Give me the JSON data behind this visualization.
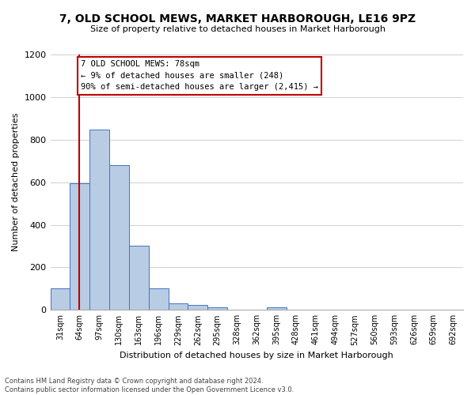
{
  "title": "7, OLD SCHOOL MEWS, MARKET HARBOROUGH, LE16 9PZ",
  "subtitle": "Size of property relative to detached houses in Market Harborough",
  "xlabel": "Distribution of detached houses by size in Market Harborough",
  "ylabel": "Number of detached properties",
  "footer1": "Contains HM Land Registry data © Crown copyright and database right 2024.",
  "footer2": "Contains public sector information licensed under the Open Government Licence v3.0.",
  "annotation_title": "7 OLD SCHOOL MEWS: 78sqm",
  "annotation_line1": "← 9% of detached houses are smaller (248)",
  "annotation_line2": "90% of semi-detached houses are larger (2,415) →",
  "bar_values": [
    100,
    595,
    848,
    680,
    300,
    100,
    30,
    22,
    12,
    0,
    0,
    12,
    0,
    0,
    0,
    0,
    0,
    0,
    0,
    0,
    0
  ],
  "bin_labels": [
    "31sqm",
    "64sqm",
    "97sqm",
    "130sqm",
    "163sqm",
    "196sqm",
    "229sqm",
    "262sqm",
    "295sqm",
    "328sqm",
    "362sqm",
    "395sqm",
    "428sqm",
    "461sqm",
    "494sqm",
    "527sqm",
    "560sqm",
    "593sqm",
    "626sqm",
    "659sqm",
    "692sqm"
  ],
  "bar_color": "#b8cce4",
  "bar_edge_color": "#4472c4",
  "vline_x": 1.47,
  "vline_color": "#c00000",
  "ylim": [
    0,
    1200
  ],
  "yticks": [
    0,
    200,
    400,
    600,
    800,
    1000,
    1200
  ],
  "annotation_box_color": "#c00000",
  "background_color": "#ffffff",
  "grid_color": "#d0d0d0"
}
